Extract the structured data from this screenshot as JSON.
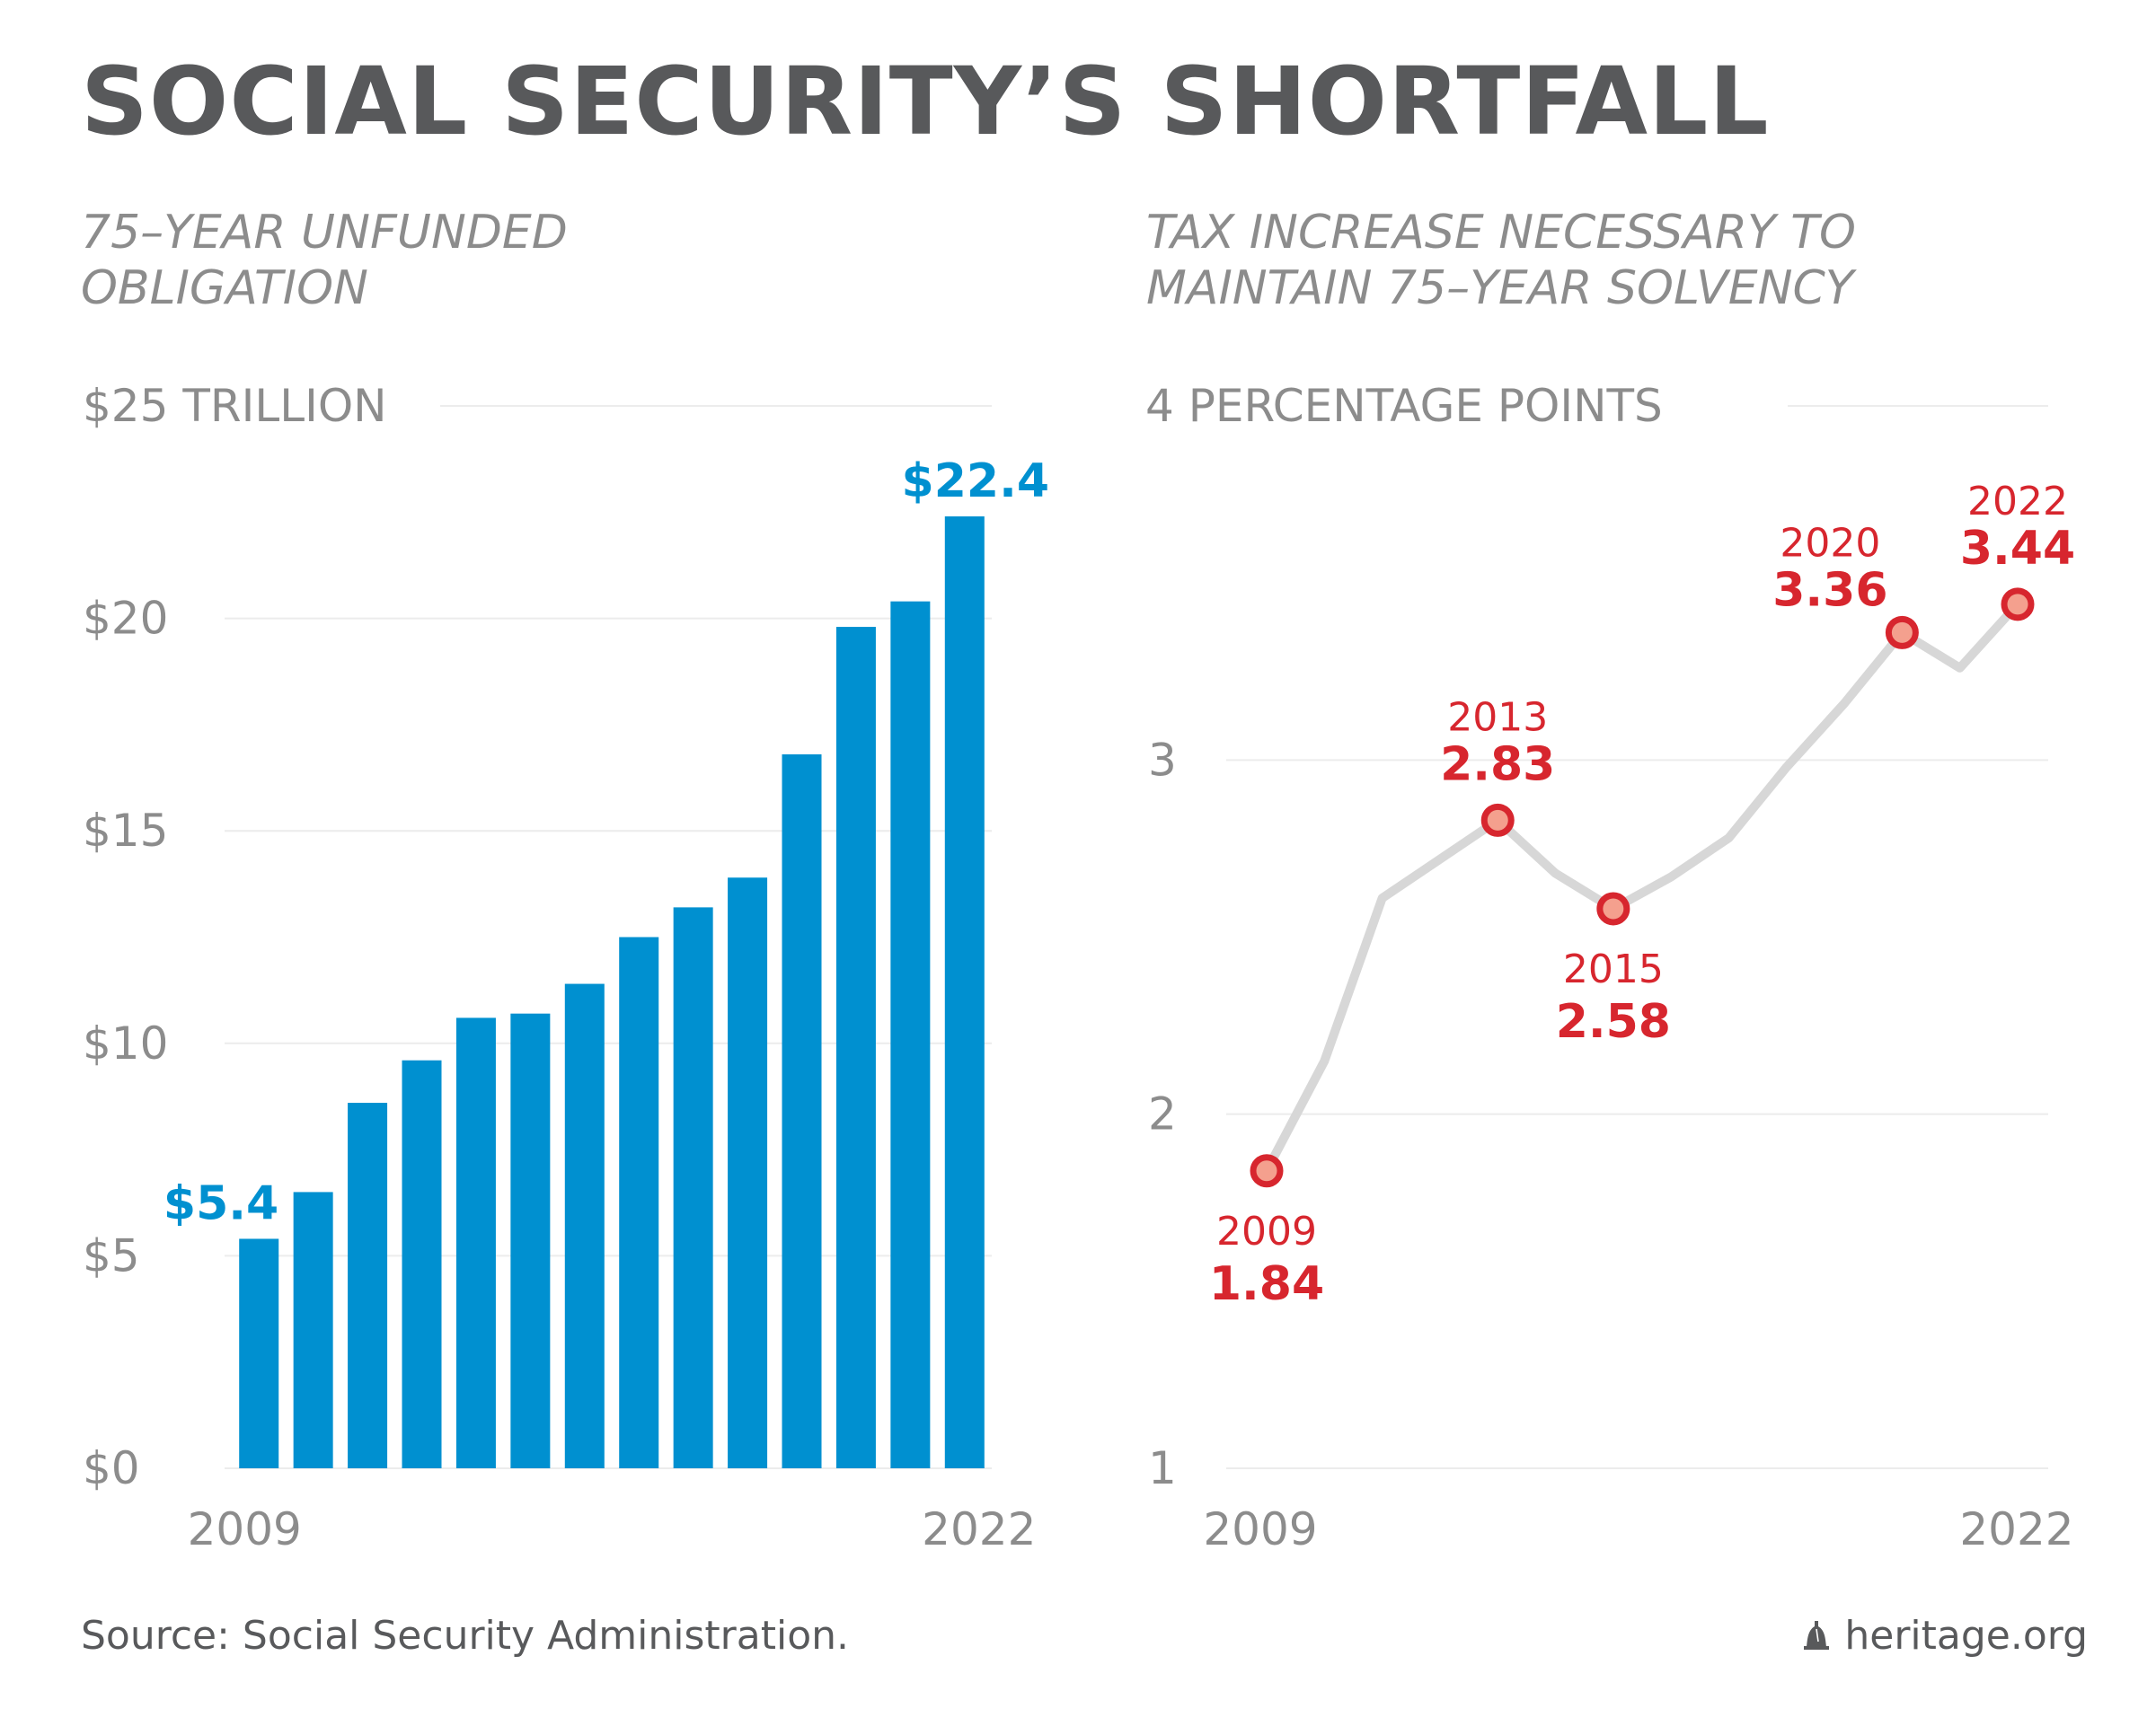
{
  "title": "SOCIAL SECURITY’S SHORTFALL",
  "source": "Source: Social Security Administration.",
  "brand": {
    "label": "heritage.org",
    "icon": "liberty-bell-icon"
  },
  "colors": {
    "bar": "#0090d0",
    "line": "#d7d7d7",
    "point": "#d7262e",
    "point_fill": "#f4a08e",
    "text_gray": "#8c8c8c",
    "title_gray": "#58595b"
  },
  "chart_data": [
    {
      "type": "bar",
      "subtitle": [
        "75–YEAR UNFUNDED",
        "OBLIGATION"
      ],
      "ylim": [
        0,
        25
      ],
      "yticks": [
        0,
        5,
        10,
        15,
        20,
        25
      ],
      "ytick_labels": [
        "$0",
        "$5",
        "$10",
        "$15",
        "$20",
        "$25 TRILLION"
      ],
      "xtick_labels": [
        "2009",
        "2022"
      ],
      "categories": [
        "2009",
        "2010",
        "2011",
        "2012",
        "2013",
        "2014",
        "2015",
        "2016",
        "2017",
        "2018",
        "2019",
        "2020",
        "2021",
        "2022"
      ],
      "values": [
        5.4,
        6.5,
        8.6,
        9.6,
        10.6,
        10.7,
        11.4,
        12.5,
        13.2,
        13.9,
        16.8,
        19.8,
        20.4,
        22.4
      ],
      "data_labels": [
        {
          "index": 0,
          "text": "$5.4"
        },
        {
          "index": 13,
          "text": "$22.4"
        }
      ],
      "grid": true
    },
    {
      "type": "line",
      "subtitle": [
        "TAX INCREASE NECESSARY TO",
        "MAINTAIN 75–YEAR SOLVENCY"
      ],
      "ylim": [
        1,
        4
      ],
      "yticks": [
        1,
        2,
        3,
        4
      ],
      "ytick_labels": [
        "1",
        "2",
        "3",
        "4 PERCENTAGE POINTS"
      ],
      "xtick_labels": [
        "2009",
        "2022"
      ],
      "x": [
        2009,
        2010,
        2011,
        2012,
        2013,
        2014,
        2015,
        2016,
        2017,
        2018,
        2019,
        2020,
        2021,
        2022
      ],
      "values": [
        1.84,
        2.15,
        2.61,
        2.72,
        2.83,
        2.68,
        2.58,
        2.67,
        2.78,
        2.98,
        3.16,
        3.36,
        3.26,
        3.44
      ],
      "highlights": [
        {
          "year": "2009",
          "value": "1.84",
          "index": 0,
          "position": "below"
        },
        {
          "year": "2013",
          "value": "2.83",
          "index": 4,
          "position": "above"
        },
        {
          "year": "2015",
          "value": "2.58",
          "index": 6,
          "position": "below"
        },
        {
          "year": "2020",
          "value": "3.36",
          "index": 11,
          "position": "above-left"
        },
        {
          "year": "2022",
          "value": "3.44",
          "index": 13,
          "position": "above"
        }
      ],
      "grid": true
    }
  ]
}
